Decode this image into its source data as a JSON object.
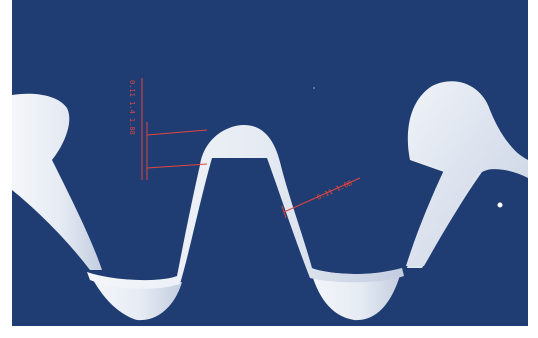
{
  "image": {
    "background_color": "#1f3d73",
    "gear_color": "#eef1f7",
    "gear_shadow_color": "#c9d2e3",
    "annotation_color": "#e0453d"
  },
  "annotations": {
    "vertical_label": "0.11 1.4 1.08",
    "diagonal_label": "0.11 1.08"
  }
}
